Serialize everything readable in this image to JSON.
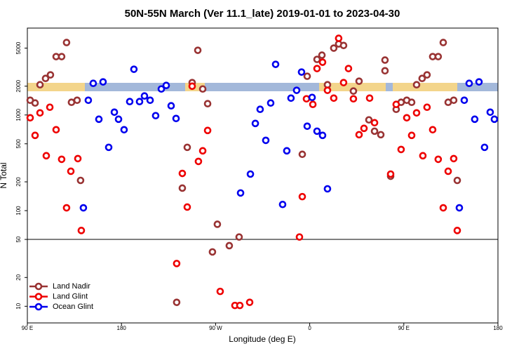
{
  "chart_data": {
    "type": "scatter",
    "title": "50N-55N March (Ver 11.1_late)   2019-01-01 to 2023-04-30",
    "x_label": "Longitude (deg E)",
    "y_label": "N Total",
    "log_y": true,
    "legend": "bottom-left",
    "hline": 50,
    "xlim": [
      90,
      540
    ],
    "ylim": [
      6.7,
      8100
    ],
    "xticks": [
      {
        "value": 90,
        "label": "90 E"
      },
      180,
      {
        "value": 270,
        "label": "90 W"
      },
      {
        "value": 360,
        "label": "0"
      },
      {
        "value": 450,
        "label": "90 E"
      },
      {
        "value": 540,
        "label": "180"
      }
    ],
    "yticks": [
      10,
      20,
      50,
      100,
      200,
      500,
      1000,
      2000,
      5000
    ],
    "series": [
      {
        "name": "Land Nadir",
        "color": "#993333",
        "x": [
          92.7,
          97.4,
          102.1,
          107.4,
          112.1,
          117.5,
          122.8,
          127.5,
          132.2,
          137.6,
          140.9,
          232.8,
          238.2,
          242.9,
          247.6,
          253,
          257.7,
          262.4,
          267,
          271.7,
          283.1,
          292.5,
          352.9,
          357.6,
          367,
          371.7,
          377,
          383,
          387.7,
          392.4,
          401.8,
          407.2,
          416.6,
          422,
          428,
          432,
          432,
          437.4,
          442.7,
          447.4,
          452.8,
          457.5,
          462.2,
          467.5,
          472.2,
          477.6,
          482.9,
          487.7,
          492.4,
          497.7,
          501.1
        ],
        "values": [
          1426,
          1334,
          2070,
          2410,
          2625,
          4075,
          4075,
          5720,
          1357,
          1426,
          207,
          11,
          172,
          459,
          2180,
          4745,
          1870,
          1312,
          37,
          72,
          43,
          53,
          388,
          2540,
          3810,
          4220,
          2070,
          5000,
          5530,
          5330,
          1778,
          2255,
          889,
          677,
          622,
          3750,
          2900,
          229,
          1146,
          1357,
          1426,
          1357,
          2070,
          2410,
          2625,
          4075,
          4075,
          5720,
          1357,
          1426,
          207
        ]
      },
      {
        "name": "Land Glint",
        "color": "#ee0000",
        "x": [
          92.7,
          97.4,
          102.1,
          108.1,
          111.5,
          117.5,
          122.8,
          127.5,
          131.6,
          138.3,
          141.6,
          232.8,
          238.2,
          242.9,
          247.6,
          253.6,
          257.7,
          262.4,
          274.4,
          288.5,
          293.2,
          302.6,
          350.2,
          352.9,
          356.9,
          363,
          367,
          372.3,
          377,
          383,
          387.7,
          392.4,
          397.1,
          401.8,
          407.2,
          411.9,
          417.3,
          422,
          437.4,
          442.7,
          447.4,
          452.8,
          457.5,
          462.2,
          468.2,
          472.2,
          477.6,
          482.9,
          487.7,
          492.4,
          497.7,
          501.1
        ],
        "values": [
          935,
          612,
          1052,
          375,
          1205,
          701,
          344,
          107,
          258,
          350,
          62,
          28,
          245,
          109,
          2000,
          327,
          422,
          689,
          14.3,
          10.2,
          10.2,
          11,
          53,
          140,
          1476,
          1290,
          3057,
          3560,
          1810,
          1500,
          6330,
          2180,
          3057,
          1476,
          622,
          725,
          1500,
          830,
          241,
          1290,
          436,
          935,
          612,
          1052,
          375,
          1205,
          701,
          344,
          107,
          258,
          350,
          62
        ]
      },
      {
        "name": "Ocean Glint",
        "color": "#0000ee",
        "x": [
          143.6,
          148.3,
          153,
          158.4,
          162.4,
          167.8,
          173.2,
          177.2,
          182.5,
          187.9,
          191.9,
          197.3,
          202,
          207.4,
          212.7,
          218.1,
          222.8,
          227.5,
          232.2,
          293.9,
          303.3,
          308,
          312.6,
          318,
          322.7,
          327.4,
          334.1,
          338.1,
          342.1,
          347.5,
          352.2,
          357.6,
          362.3,
          367,
          372.3,
          377,
          503.1,
          507.8,
          512.5,
          517.8,
          521.9,
          527.2,
          532.6,
          536.6
        ],
        "values": [
          107,
          1426,
          2142,
          903,
          2218,
          459,
          1070,
          903,
          701,
          1380,
          3005,
          1380,
          1580,
          1426,
          984,
          1870,
          2036,
          1247,
          919,
          153,
          241,
          816,
          1146,
          543,
          1334,
          3384,
          116,
          422,
          1500,
          1810,
          2810,
          763,
          1527,
          677,
          612,
          169,
          107,
          1426,
          2142,
          903,
          2218,
          459,
          1070,
          903
        ]
      }
    ]
  }
}
